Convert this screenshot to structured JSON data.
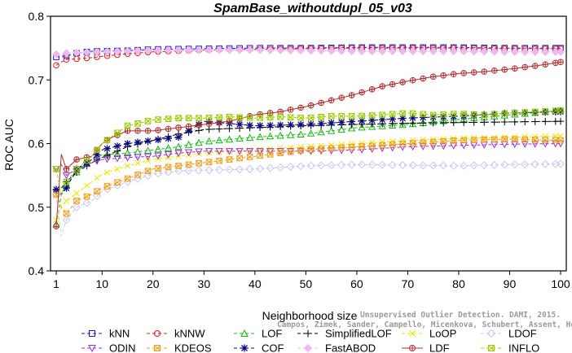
{
  "chart_data": {
    "type": "line",
    "title": "SpamBase_withoutdupl_05_v03",
    "xlabel": "Neighborhood size",
    "ylabel": "ROC AUC",
    "xlim": [
      1,
      100
    ],
    "ylim": [
      0.4,
      0.8
    ],
    "xticks": [
      1,
      10,
      20,
      30,
      40,
      50,
      60,
      70,
      80,
      90,
      100
    ],
    "yticks": [
      0.4,
      0.5,
      0.6,
      0.7,
      0.8
    ],
    "grid": false,
    "legend_position": "bottom",
    "series": [
      {
        "name": "kNN",
        "color": "#1a1acc",
        "marker": "square",
        "dash": "4,3",
        "points": [
          [
            1,
            0.736
          ],
          [
            3,
            0.738
          ],
          [
            5,
            0.742
          ],
          [
            8,
            0.745
          ],
          [
            10,
            0.745
          ],
          [
            15,
            0.746
          ],
          [
            20,
            0.748
          ],
          [
            30,
            0.749
          ],
          [
            40,
            0.75
          ],
          [
            50,
            0.75
          ],
          [
            60,
            0.751
          ],
          [
            70,
            0.751
          ],
          [
            80,
            0.751
          ],
          [
            90,
            0.75
          ],
          [
            100,
            0.75
          ]
        ]
      },
      {
        "name": "kNNW",
        "color": "#dd2020",
        "marker": "circle",
        "dash": "4,3",
        "points": [
          [
            1,
            0.723
          ],
          [
            2,
            0.728
          ],
          [
            3,
            0.732
          ],
          [
            5,
            0.733
          ],
          [
            8,
            0.735
          ],
          [
            10,
            0.737
          ],
          [
            15,
            0.741
          ],
          [
            20,
            0.744
          ],
          [
            30,
            0.747
          ],
          [
            40,
            0.748
          ],
          [
            50,
            0.749
          ],
          [
            60,
            0.75
          ],
          [
            70,
            0.75
          ],
          [
            80,
            0.75
          ],
          [
            90,
            0.749
          ],
          [
            100,
            0.749
          ]
        ]
      },
      {
        "name": "LOF",
        "color": "#18b818",
        "marker": "triangle-up",
        "dash": "4,3",
        "points": [
          [
            1,
            0.473
          ],
          [
            2,
            0.52
          ],
          [
            3,
            0.535
          ],
          [
            5,
            0.555
          ],
          [
            8,
            0.575
          ],
          [
            10,
            0.582
          ],
          [
            15,
            0.585
          ],
          [
            20,
            0.59
          ],
          [
            25,
            0.595
          ],
          [
            30,
            0.603
          ],
          [
            40,
            0.61
          ],
          [
            50,
            0.615
          ],
          [
            60,
            0.625
          ],
          [
            70,
            0.63
          ],
          [
            80,
            0.638
          ],
          [
            90,
            0.645
          ],
          [
            100,
            0.652
          ]
        ]
      },
      {
        "name": "SimplifiedLOF",
        "color": "#000000",
        "marker": "plus",
        "dash": "4,3",
        "points": [
          [
            1,
            0.527
          ],
          [
            2,
            0.53
          ],
          [
            3,
            0.54
          ],
          [
            5,
            0.555
          ],
          [
            8,
            0.57
          ],
          [
            10,
            0.578
          ],
          [
            15,
            0.595
          ],
          [
            20,
            0.605
          ],
          [
            25,
            0.615
          ],
          [
            30,
            0.622
          ],
          [
            40,
            0.625
          ],
          [
            50,
            0.628
          ],
          [
            60,
            0.63
          ],
          [
            70,
            0.632
          ],
          [
            80,
            0.633
          ],
          [
            90,
            0.634
          ],
          [
            100,
            0.635
          ]
        ]
      },
      {
        "name": "LoOP",
        "color": "#e8e800",
        "marker": "x",
        "dash": "4,3",
        "points": [
          [
            1,
            0.48
          ],
          [
            2,
            0.5
          ],
          [
            3,
            0.51
          ],
          [
            5,
            0.522
          ],
          [
            8,
            0.54
          ],
          [
            10,
            0.552
          ],
          [
            15,
            0.565
          ],
          [
            20,
            0.575
          ],
          [
            25,
            0.58
          ],
          [
            30,
            0.585
          ],
          [
            40,
            0.59
          ],
          [
            50,
            0.595
          ],
          [
            60,
            0.6
          ],
          [
            70,
            0.605
          ],
          [
            80,
            0.608
          ],
          [
            90,
            0.61
          ],
          [
            100,
            0.612
          ]
        ]
      },
      {
        "name": "LDOF",
        "color": "#c8c8f0",
        "marker": "diamond",
        "dash": "4,3",
        "points": [
          [
            1,
            0.52
          ],
          [
            2,
            0.455
          ],
          [
            3,
            0.48
          ],
          [
            5,
            0.5
          ],
          [
            8,
            0.51
          ],
          [
            10,
            0.525
          ],
          [
            15,
            0.54
          ],
          [
            20,
            0.552
          ],
          [
            25,
            0.557
          ],
          [
            30,
            0.558
          ],
          [
            40,
            0.56
          ],
          [
            50,
            0.565
          ],
          [
            60,
            0.567
          ],
          [
            70,
            0.566
          ],
          [
            80,
            0.565
          ],
          [
            90,
            0.567
          ],
          [
            100,
            0.568
          ]
        ]
      },
      {
        "name": "ODIN",
        "color": "#9b30d9",
        "marker": "triangle-down",
        "dash": "4,3",
        "points": [
          [
            1,
            0.56
          ],
          [
            2,
            0.567
          ],
          [
            3,
            0.55
          ],
          [
            5,
            0.56
          ],
          [
            8,
            0.57
          ],
          [
            10,
            0.575
          ],
          [
            15,
            0.578
          ],
          [
            20,
            0.58
          ],
          [
            25,
            0.585
          ],
          [
            30,
            0.588
          ],
          [
            40,
            0.588
          ],
          [
            50,
            0.588
          ],
          [
            60,
            0.59
          ],
          [
            70,
            0.595
          ],
          [
            80,
            0.597
          ],
          [
            90,
            0.599
          ],
          [
            100,
            0.6
          ]
        ]
      },
      {
        "name": "KDEOS",
        "color": "#f0a020",
        "marker": "square-x",
        "dash": "4,3",
        "points": [
          [
            1,
            0.52
          ],
          [
            2,
            0.5
          ],
          [
            3,
            0.49
          ],
          [
            5,
            0.51
          ],
          [
            8,
            0.52
          ],
          [
            10,
            0.53
          ],
          [
            15,
            0.545
          ],
          [
            20,
            0.56
          ],
          [
            25,
            0.565
          ],
          [
            30,
            0.57
          ],
          [
            40,
            0.58
          ],
          [
            50,
            0.59
          ],
          [
            60,
            0.595
          ],
          [
            70,
            0.6
          ],
          [
            80,
            0.605
          ],
          [
            90,
            0.607
          ],
          [
            100,
            0.605
          ]
        ]
      },
      {
        "name": "COF",
        "color": "#0a0a80",
        "marker": "asterisk",
        "dash": "4,3",
        "points": [
          [
            1,
            0.528
          ],
          [
            2,
            0.52
          ],
          [
            3,
            0.53
          ],
          [
            5,
            0.56
          ],
          [
            8,
            0.575
          ],
          [
            10,
            0.59
          ],
          [
            15,
            0.6
          ],
          [
            20,
            0.605
          ],
          [
            25,
            0.61
          ],
          [
            30,
            0.635
          ],
          [
            40,
            0.628
          ],
          [
            50,
            0.63
          ],
          [
            60,
            0.635
          ],
          [
            70,
            0.64
          ],
          [
            80,
            0.643
          ],
          [
            90,
            0.648
          ],
          [
            100,
            0.65
          ]
        ]
      },
      {
        "name": "FastABOD",
        "color": "#f0b8f0",
        "marker": "diamond-filled",
        "dash": "4,3",
        "points": [
          [
            1,
            0.74
          ],
          [
            3,
            0.742
          ],
          [
            5,
            0.743
          ],
          [
            10,
            0.744
          ],
          [
            15,
            0.745
          ],
          [
            20,
            0.746
          ],
          [
            30,
            0.747
          ],
          [
            40,
            0.747
          ],
          [
            50,
            0.746
          ],
          [
            60,
            0.745
          ],
          [
            70,
            0.745
          ],
          [
            80,
            0.745
          ],
          [
            90,
            0.744
          ],
          [
            100,
            0.744
          ]
        ]
      },
      {
        "name": "LDF",
        "color": "#b03030",
        "marker": "circle-plus",
        "dash": "",
        "points": [
          [
            1,
            0.47
          ],
          [
            2,
            0.583
          ],
          [
            3,
            0.56
          ],
          [
            5,
            0.575
          ],
          [
            8,
            0.58
          ],
          [
            10,
            0.6
          ],
          [
            12,
            0.61
          ],
          [
            15,
            0.62
          ],
          [
            20,
            0.62
          ],
          [
            25,
            0.625
          ],
          [
            30,
            0.63
          ],
          [
            35,
            0.635
          ],
          [
            40,
            0.645
          ],
          [
            45,
            0.65
          ],
          [
            50,
            0.658
          ],
          [
            55,
            0.668
          ],
          [
            60,
            0.678
          ],
          [
            65,
            0.69
          ],
          [
            70,
            0.698
          ],
          [
            75,
            0.705
          ],
          [
            80,
            0.71
          ],
          [
            85,
            0.713
          ],
          [
            90,
            0.717
          ],
          [
            95,
            0.722
          ],
          [
            100,
            0.728
          ]
        ]
      },
      {
        "name": "INFLO",
        "color": "#99cc00",
        "marker": "square-x",
        "dash": "4,3",
        "points": [
          [
            1,
            0.56
          ],
          [
            2,
            0.52
          ],
          [
            3,
            0.54
          ],
          [
            5,
            0.56
          ],
          [
            8,
            0.58
          ],
          [
            10,
            0.6
          ],
          [
            15,
            0.628
          ],
          [
            20,
            0.637
          ],
          [
            25,
            0.64
          ],
          [
            30,
            0.64
          ],
          [
            35,
            0.642
          ],
          [
            40,
            0.64
          ],
          [
            45,
            0.642
          ],
          [
            50,
            0.64
          ],
          [
            55,
            0.643
          ],
          [
            60,
            0.643
          ],
          [
            65,
            0.645
          ],
          [
            70,
            0.648
          ],
          [
            75,
            0.645
          ],
          [
            80,
            0.647
          ],
          [
            85,
            0.645
          ],
          [
            90,
            0.648
          ],
          [
            95,
            0.65
          ],
          [
            100,
            0.652
          ]
        ]
      }
    ]
  },
  "watermark": {
    "line1": "Unsupervised Outlier Detection. DAMI, 2015.",
    "line2": "Campos, Zimek, Sander, Campello, Micenkova, Schubert, Assent, Houle"
  }
}
